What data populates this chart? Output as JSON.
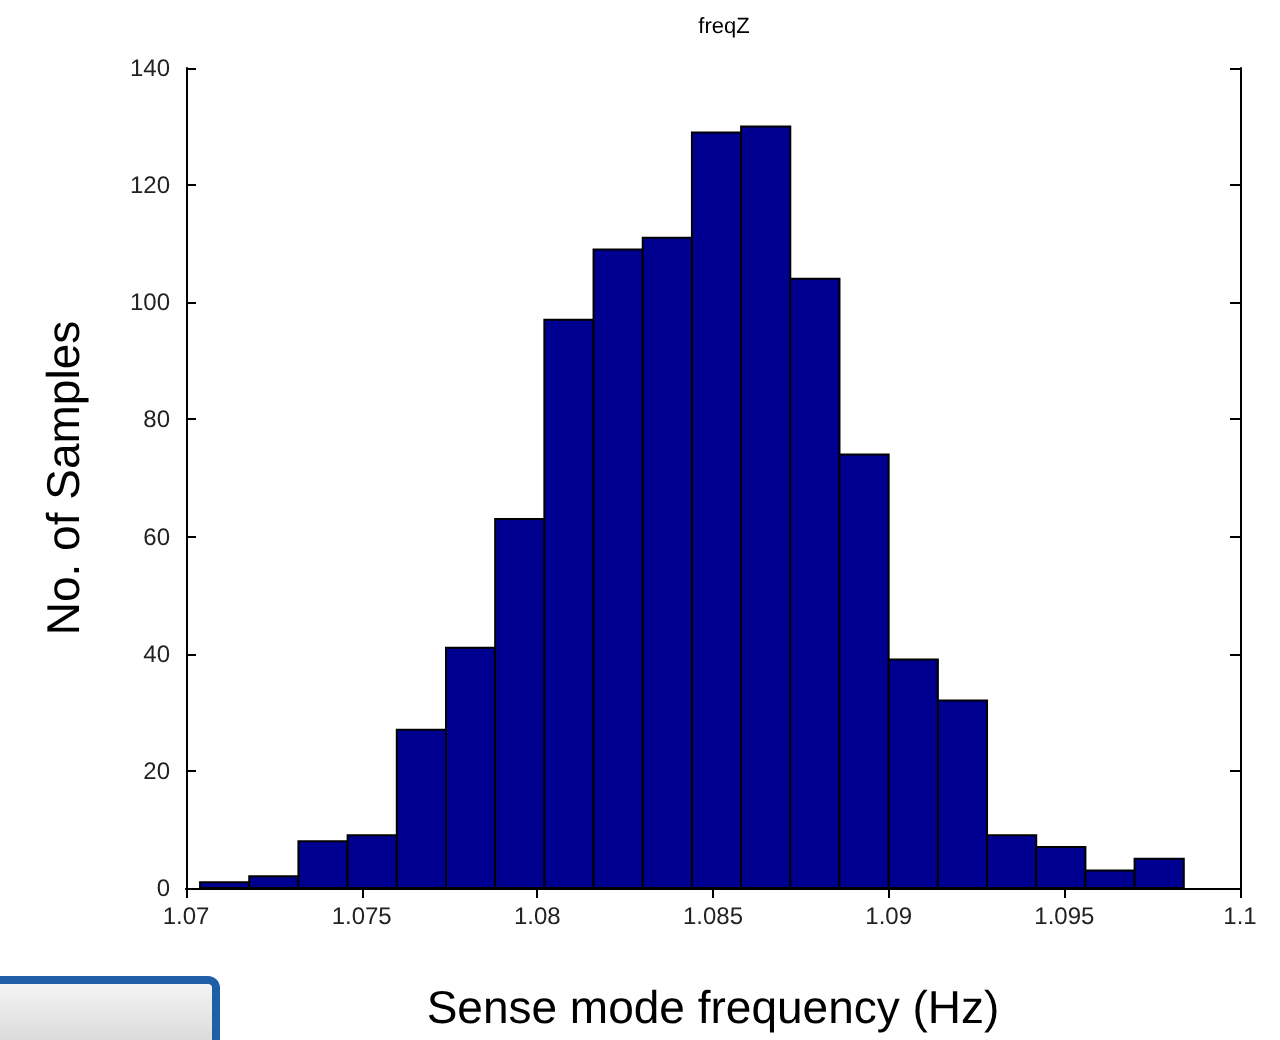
{
  "chart_data": {
    "type": "histogram",
    "title": "freqZ",
    "xlabel": "Sense mode frequency (Hz)",
    "ylabel": "No. of Samples",
    "bins": [
      1.0704,
      1.0718,
      1.0732,
      1.0746,
      1.076,
      1.0774,
      1.0788,
      1.0802,
      1.0816,
      1.083,
      1.0844,
      1.0858,
      1.0872,
      1.0886,
      1.09,
      1.0914,
      1.0928,
      1.0942,
      1.0956,
      1.097,
      1.0984
    ],
    "values": [
      1,
      2,
      8,
      9,
      27,
      41,
      63,
      97,
      109,
      111,
      129,
      130,
      104,
      74,
      39,
      32,
      9,
      7,
      3,
      5
    ],
    "color": "#000090",
    "xlim": [
      1.07,
      1.1
    ],
    "xticks": [
      1.07,
      1.075,
      1.08,
      1.085,
      1.09,
      1.095,
      1.1
    ],
    "ylim": [
      0,
      140
    ],
    "yticks": [
      0,
      20,
      40,
      60,
      80,
      100,
      120,
      140
    ],
    "grid": false
  }
}
